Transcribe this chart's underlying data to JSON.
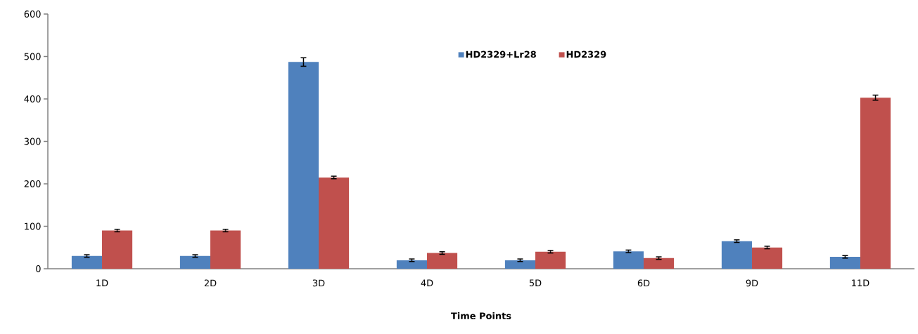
{
  "chart_data": {
    "type": "bar",
    "xlabel": "Time Points",
    "categories": [
      "1D",
      "2D",
      "3D",
      "4D",
      "5D",
      "6D",
      "9D",
      "11D"
    ],
    "series": [
      {
        "name": "HD2329+Lr28",
        "color": "#4f81bd",
        "values": [
          30,
          30,
          487,
          20,
          20,
          41,
          65,
          28
        ],
        "errors": [
          3,
          3,
          10,
          3,
          3,
          3,
          3,
          3
        ]
      },
      {
        "name": "HD2329",
        "color": "#c0504d",
        "values": [
          90,
          90,
          215,
          37,
          40,
          25,
          50,
          403
        ],
        "errors": [
          3,
          3,
          3,
          3,
          3,
          3,
          3,
          6
        ]
      }
    ],
    "ylim": [
      0,
      600
    ],
    "yticks": [
      0,
      100,
      200,
      300,
      400,
      500,
      600
    ],
    "grid": false,
    "legend": "top"
  }
}
